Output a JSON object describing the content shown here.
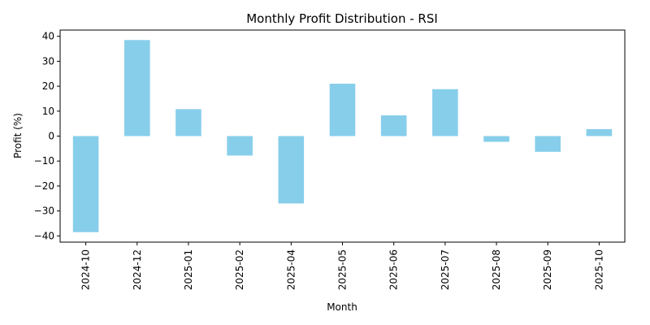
{
  "chart_data": {
    "type": "bar",
    "title": "Monthly Profit Distribution - RSI",
    "xlabel": "Month",
    "ylabel": "Profit (%)",
    "categories": [
      "2024-10",
      "2024-12",
      "2025-01",
      "2025-02",
      "2025-04",
      "2025-05",
      "2025-06",
      "2025-07",
      "2025-08",
      "2025-09",
      "2025-10"
    ],
    "values": [
      -38.5,
      38.5,
      10.8,
      -7.8,
      -27.0,
      21.0,
      8.3,
      18.8,
      -2.3,
      -6.3,
      2.8
    ],
    "ylim": [
      -42.5,
      42.5
    ],
    "yticks": [
      -40,
      -30,
      -20,
      -10,
      0,
      10,
      20,
      30,
      40
    ],
    "ytick_labels": [
      "−40",
      "−30",
      "−20",
      "−10",
      "0",
      "10",
      "20",
      "30",
      "40"
    ],
    "grid": false,
    "bar_color": "#87ceeb"
  }
}
